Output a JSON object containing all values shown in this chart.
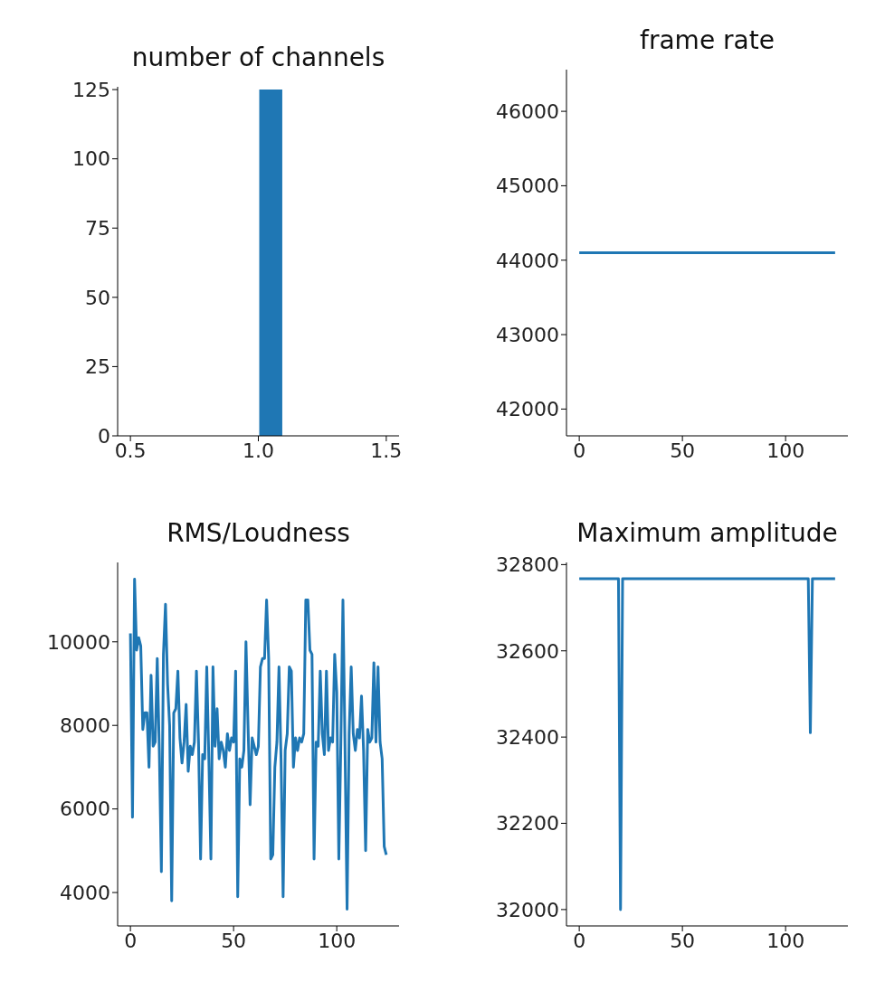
{
  "chart_data": [
    {
      "type": "histogram",
      "title": "number of channels",
      "bins": [
        0.5,
        0.6,
        0.7,
        0.8,
        0.9,
        1.0,
        1.1,
        1.2,
        1.3,
        1.4,
        1.5
      ],
      "values": [
        0,
        0,
        0,
        0,
        0,
        125,
        0,
        0,
        0,
        0
      ],
      "color": "#1f77b4",
      "xlim": [
        0.45,
        1.55
      ],
      "xticks": [
        0.5,
        {
          "value": 1.0,
          "label": "1.0"
        },
        1.5
      ],
      "ylim": [
        0,
        126
      ],
      "yticks": [
        0,
        25,
        50,
        75,
        100,
        125
      ]
    },
    {
      "type": "line",
      "title": "frame rate",
      "x": [
        0,
        1,
        2,
        3,
        4,
        5,
        6,
        7,
        8,
        9,
        10,
        11,
        12,
        13,
        14,
        15,
        16,
        17,
        18,
        19,
        20,
        21,
        22,
        23,
        24,
        25,
        26,
        27,
        28,
        29,
        30,
        31,
        32,
        33,
        34,
        35,
        36,
        37,
        38,
        39,
        40,
        41,
        42,
        43,
        44,
        45,
        46,
        47,
        48,
        49,
        50,
        51,
        52,
        53,
        54,
        55,
        56,
        57,
        58,
        59,
        60,
        61,
        62,
        63,
        64,
        65,
        66,
        67,
        68,
        69,
        70,
        71,
        72,
        73,
        74,
        75,
        76,
        77,
        78,
        79,
        80,
        81,
        82,
        83,
        84,
        85,
        86,
        87,
        88,
        89,
        90,
        91,
        92,
        93,
        94,
        95,
        96,
        97,
        98,
        99,
        100,
        101,
        102,
        103,
        104,
        105,
        106,
        107,
        108,
        109,
        110,
        111,
        112,
        113,
        114,
        115,
        116,
        117,
        118,
        119,
        120,
        121,
        122,
        123,
        124
      ],
      "values": [
        44100,
        44100,
        44100,
        44100,
        44100,
        44100,
        44100,
        44100,
        44100,
        44100,
        44100,
        44100,
        44100,
        44100,
        44100,
        44100,
        44100,
        44100,
        44100,
        44100,
        44100,
        44100,
        44100,
        44100,
        44100,
        44100,
        44100,
        44100,
        44100,
        44100,
        44100,
        44100,
        44100,
        44100,
        44100,
        44100,
        44100,
        44100,
        44100,
        44100,
        44100,
        44100,
        44100,
        44100,
        44100,
        44100,
        44100,
        44100,
        44100,
        44100,
        44100,
        44100,
        44100,
        44100,
        44100,
        44100,
        44100,
        44100,
        44100,
        44100,
        44100,
        44100,
        44100,
        44100,
        44100,
        44100,
        44100,
        44100,
        44100,
        44100,
        44100,
        44100,
        44100,
        44100,
        44100,
        44100,
        44100,
        44100,
        44100,
        44100,
        44100,
        44100,
        44100,
        44100,
        44100,
        44100,
        44100,
        44100,
        44100,
        44100,
        44100,
        44100,
        44100,
        44100,
        44100,
        44100,
        44100,
        44100,
        44100,
        44100,
        44100,
        44100,
        44100,
        44100,
        44100,
        44100,
        44100,
        44100,
        44100,
        44100,
        44100,
        44100,
        44100,
        44100,
        44100,
        44100,
        44100,
        44100,
        44100,
        44100,
        44100,
        44100,
        44100,
        44100,
        44100
      ],
      "color": "#1f77b4",
      "xlim": [
        -6.2,
        130.2
      ],
      "xticks": [
        0,
        50,
        100
      ],
      "ylim": [
        41640,
        46560
      ],
      "yticks": [
        42000,
        43000,
        44000,
        45000,
        46000
      ]
    },
    {
      "type": "line",
      "title": "RMS/Loudness",
      "x": [
        0,
        1,
        2,
        3,
        4,
        5,
        6,
        7,
        8,
        9,
        10,
        11,
        12,
        13,
        14,
        15,
        16,
        17,
        18,
        19,
        20,
        21,
        22,
        23,
        24,
        25,
        26,
        27,
        28,
        29,
        30,
        31,
        32,
        33,
        34,
        35,
        36,
        37,
        38,
        39,
        40,
        41,
        42,
        43,
        44,
        45,
        46,
        47,
        48,
        49,
        50,
        51,
        52,
        53,
        54,
        55,
        56,
        57,
        58,
        59,
        60,
        61,
        62,
        63,
        64,
        65,
        66,
        67,
        68,
        69,
        70,
        71,
        72,
        73,
        74,
        75,
        76,
        77,
        78,
        79,
        80,
        81,
        82,
        83,
        84,
        85,
        86,
        87,
        88,
        89,
        90,
        91,
        92,
        93,
        94,
        95,
        96,
        97,
        98,
        99,
        100,
        101,
        102,
        103,
        104,
        105,
        106,
        107,
        108,
        109,
        110,
        111,
        112,
        113,
        114,
        115,
        116,
        117,
        118,
        119,
        120,
        121,
        122,
        123,
        124
      ],
      "values": [
        10200,
        5800,
        11500,
        9800,
        10100,
        9900,
        7900,
        8300,
        8300,
        7000,
        9200,
        7500,
        7600,
        9600,
        7400,
        4500,
        9700,
        10900,
        9000,
        8000,
        3800,
        8300,
        8400,
        9300,
        7700,
        7100,
        7600,
        8500,
        6900,
        7500,
        7300,
        7600,
        9300,
        7600,
        4800,
        7300,
        7200,
        9400,
        7200,
        4800,
        9400,
        7500,
        8400,
        7200,
        7600,
        7400,
        7000,
        7800,
        7400,
        7700,
        7600,
        9300,
        3900,
        7200,
        7000,
        7400,
        10000,
        8000,
        6100,
        7700,
        7500,
        7300,
        7500,
        9400,
        9600,
        9600,
        11000,
        9600,
        4800,
        4900,
        7000,
        7600,
        9400,
        7200,
        3900,
        7400,
        7800,
        9400,
        9300,
        7000,
        7700,
        7400,
        7700,
        7600,
        7800,
        11000,
        11000,
        9800,
        9700,
        4800,
        7600,
        7500,
        9300,
        7800,
        7300,
        9300,
        7400,
        7700,
        7600,
        9700,
        8800,
        4800,
        7600,
        11000,
        7500,
        3600,
        7800,
        9400,
        7800,
        7400,
        7900,
        7700,
        8700,
        7400,
        5000,
        7900,
        7600,
        7700,
        9500,
        7600,
        9400,
        7600,
        7200,
        5100,
        4900
      ],
      "color": "#1f77b4",
      "xlim": [
        -6.2,
        130.2
      ],
      "xticks": [
        0,
        50,
        100
      ],
      "ylim": [
        3200,
        11900
      ],
      "yticks": [
        4000,
        6000,
        8000,
        10000
      ]
    },
    {
      "type": "line",
      "title": "Maximum amplitude",
      "x": [
        0,
        1,
        2,
        3,
        4,
        5,
        6,
        7,
        8,
        9,
        10,
        11,
        12,
        13,
        14,
        15,
        16,
        17,
        18,
        19,
        20,
        21,
        22,
        23,
        24,
        25,
        26,
        27,
        28,
        29,
        30,
        31,
        32,
        33,
        34,
        35,
        36,
        37,
        38,
        39,
        40,
        41,
        42,
        43,
        44,
        45,
        46,
        47,
        48,
        49,
        50,
        51,
        52,
        53,
        54,
        55,
        56,
        57,
        58,
        59,
        60,
        61,
        62,
        63,
        64,
        65,
        66,
        67,
        68,
        69,
        70,
        71,
        72,
        73,
        74,
        75,
        76,
        77,
        78,
        79,
        80,
        81,
        82,
        83,
        84,
        85,
        86,
        87,
        88,
        89,
        90,
        91,
        92,
        93,
        94,
        95,
        96,
        97,
        98,
        99,
        100,
        101,
        102,
        103,
        104,
        105,
        106,
        107,
        108,
        109,
        110,
        111,
        112,
        113,
        114,
        115,
        116,
        117,
        118,
        119,
        120,
        121,
        122,
        123,
        124
      ],
      "values": [
        32767,
        32767,
        32767,
        32767,
        32767,
        32767,
        32767,
        32767,
        32767,
        32767,
        32767,
        32767,
        32767,
        32767,
        32767,
        32767,
        32767,
        32767,
        32767,
        32767,
        32000,
        32767,
        32767,
        32767,
        32767,
        32767,
        32767,
        32767,
        32767,
        32767,
        32767,
        32767,
        32767,
        32767,
        32767,
        32767,
        32767,
        32767,
        32767,
        32767,
        32767,
        32767,
        32767,
        32767,
        32767,
        32767,
        32767,
        32767,
        32767,
        32767,
        32767,
        32767,
        32767,
        32767,
        32767,
        32767,
        32767,
        32767,
        32767,
        32767,
        32767,
        32767,
        32767,
        32767,
        32767,
        32767,
        32767,
        32767,
        32767,
        32767,
        32767,
        32767,
        32767,
        32767,
        32767,
        32767,
        32767,
        32767,
        32767,
        32767,
        32767,
        32767,
        32767,
        32767,
        32767,
        32767,
        32767,
        32767,
        32767,
        32767,
        32767,
        32767,
        32767,
        32767,
        32767,
        32767,
        32767,
        32767,
        32767,
        32767,
        32767,
        32767,
        32767,
        32767,
        32767,
        32767,
        32767,
        32767,
        32767,
        32767,
        32767,
        32767,
        32410,
        32767,
        32767,
        32767,
        32767,
        32767,
        32767,
        32767,
        32767,
        32767,
        32767,
        32767,
        32767
      ],
      "color": "#1f77b4",
      "xlim": [
        -6.2,
        130.2
      ],
      "xticks": [
        0,
        50,
        100
      ],
      "ylim": [
        31962,
        32805
      ],
      "yticks": [
        32000,
        32200,
        32400,
        32600,
        32800
      ]
    }
  ]
}
